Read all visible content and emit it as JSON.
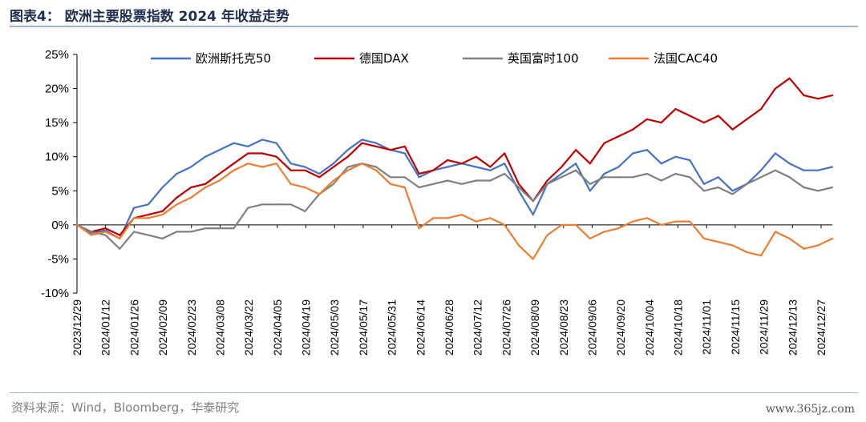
{
  "header": {
    "title": "图表4：  欧洲主要股票指数 2024 年收益走势"
  },
  "footer": {
    "source": "资料来源：Wind，Bloomberg，华泰研究",
    "watermark": "www.365jz.com"
  },
  "chart_data": {
    "type": "line",
    "title": "",
    "xlabel": "",
    "ylabel": "",
    "ylim": [
      -10,
      25
    ],
    "ytick_values": [
      -10,
      -5,
      0,
      5,
      10,
      15,
      20,
      25
    ],
    "ytick_labels": [
      "-10%",
      "-5%",
      "0%",
      "5%",
      "10%",
      "15%",
      "20%",
      "25%"
    ],
    "x_tick_labels": [
      "2023/12/29",
      "2024/01/12",
      "2024/01/26",
      "2024/02/09",
      "2024/02/23",
      "2024/03/08",
      "2024/03/22",
      "2024/04/05",
      "2024/04/19",
      "2024/05/03",
      "2024/05/17",
      "2024/05/31",
      "2024/06/14",
      "2024/06/28",
      "2024/07/12",
      "2024/07/26",
      "2024/08/09",
      "2024/08/23",
      "2024/09/06",
      "2024/09/20",
      "2024/10/04",
      "2024/10/18",
      "2024/11/01",
      "2024/11/15",
      "2024/11/29",
      "2024/12/13",
      "2024/12/27"
    ],
    "x": [
      "2023/12/29",
      "2024/01/05",
      "2024/01/12",
      "2024/01/19",
      "2024/01/26",
      "2024/02/02",
      "2024/02/09",
      "2024/02/16",
      "2024/02/23",
      "2024/03/01",
      "2024/03/08",
      "2024/03/15",
      "2024/03/22",
      "2024/03/29",
      "2024/04/05",
      "2024/04/12",
      "2024/04/19",
      "2024/04/26",
      "2024/05/03",
      "2024/05/10",
      "2024/05/17",
      "2024/05/24",
      "2024/05/31",
      "2024/06/07",
      "2024/06/14",
      "2024/06/21",
      "2024/06/28",
      "2024/07/05",
      "2024/07/12",
      "2024/07/19",
      "2024/07/26",
      "2024/08/02",
      "2024/08/09",
      "2024/08/16",
      "2024/08/23",
      "2024/08/30",
      "2024/09/06",
      "2024/09/13",
      "2024/09/20",
      "2024/09/27",
      "2024/10/04",
      "2024/10/11",
      "2024/10/18",
      "2024/10/25",
      "2024/11/01",
      "2024/11/08",
      "2024/11/15",
      "2024/11/22",
      "2024/11/29",
      "2024/12/06",
      "2024/12/13",
      "2024/12/20",
      "2024/12/27",
      "2024/12/31"
    ],
    "legend_position": "top",
    "grid": false,
    "series": [
      {
        "name": "欧洲斯托克50",
        "color": "#4472c4",
        "values": [
          0,
          -1.2,
          -0.8,
          -2.0,
          2.5,
          3.0,
          5.5,
          7.5,
          8.5,
          10.0,
          11.0,
          12.0,
          11.5,
          12.5,
          12.0,
          9.0,
          8.5,
          7.5,
          9.0,
          11.0,
          12.5,
          12.0,
          11.0,
          10.5,
          7.0,
          8.0,
          8.5,
          9.0,
          8.5,
          8.0,
          9.0,
          5.0,
          1.5,
          6.0,
          7.5,
          9.0,
          5.0,
          7.5,
          8.5,
          10.5,
          11.0,
          9.0,
          10.0,
          9.5,
          6.0,
          7.0,
          5.0,
          6.0,
          8.0,
          10.5,
          9.0,
          8.0,
          8.0,
          8.5
        ]
      },
      {
        "name": "德国DAX",
        "color": "#c00000",
        "values": [
          0,
          -1.0,
          -0.5,
          -1.5,
          1.0,
          1.5,
          2.0,
          4.0,
          5.5,
          6.0,
          7.5,
          9.0,
          10.5,
          10.5,
          10.0,
          8.0,
          8.0,
          7.0,
          8.5,
          10.0,
          12.0,
          11.5,
          11.0,
          11.5,
          7.5,
          8.0,
          9.5,
          9.0,
          10.0,
          8.5,
          10.5,
          6.0,
          3.5,
          6.5,
          8.5,
          11.0,
          9.0,
          12.0,
          13.0,
          14.0,
          15.5,
          15.0,
          17.0,
          16.0,
          15.0,
          16.0,
          14.0,
          15.5,
          17.0,
          20.0,
          21.5,
          19.0,
          18.5,
          19.0
        ]
      },
      {
        "name": "英国富时100",
        "color": "#808080",
        "values": [
          0,
          -1.0,
          -1.5,
          -3.5,
          -1.0,
          -1.5,
          -2.0,
          -1.0,
          -1.0,
          -0.5,
          -0.5,
          -0.5,
          2.5,
          3.0,
          3.0,
          3.0,
          2.0,
          4.5,
          6.0,
          8.5,
          9.0,
          8.5,
          7.0,
          7.0,
          5.5,
          6.0,
          6.5,
          6.0,
          6.5,
          6.5,
          7.5,
          5.5,
          3.5,
          6.0,
          7.0,
          8.0,
          6.0,
          7.0,
          7.0,
          7.0,
          7.5,
          6.5,
          7.5,
          7.0,
          5.0,
          5.5,
          4.5,
          6.0,
          7.0,
          8.0,
          7.0,
          5.5,
          5.0,
          5.5
        ]
      },
      {
        "name": "法国CAC40",
        "color": "#ed7d31",
        "values": [
          0,
          -1.5,
          -1.0,
          -2.0,
          1.0,
          1.0,
          1.5,
          3.0,
          4.0,
          5.5,
          6.5,
          8.0,
          9.0,
          8.5,
          9.0,
          6.0,
          5.5,
          4.5,
          6.5,
          8.0,
          9.0,
          8.0,
          6.0,
          5.5,
          -0.5,
          1.0,
          1.0,
          1.5,
          0.5,
          1.0,
          0,
          -3.0,
          -5.0,
          -1.5,
          0,
          0,
          -2.0,
          -1.0,
          -0.5,
          0.5,
          1.0,
          0,
          0.5,
          0.5,
          -2.0,
          -2.5,
          -3.0,
          -4.0,
          -4.5,
          -1.0,
          -2.0,
          -3.5,
          -3.0,
          -2.0
        ]
      }
    ]
  }
}
